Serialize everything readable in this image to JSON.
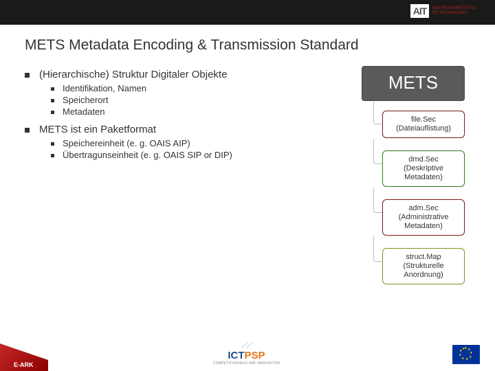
{
  "header": {
    "ait_mark": "AIT",
    "ait_line1": "AUSTRIAN INSTITUTE",
    "ait_line2": "OF TECHNOLOGY"
  },
  "title": "METS Metadata Encoding & Transmission Standard",
  "bullets": {
    "p1": "(Hierarchische) Struktur Digitaler Objekte",
    "p1_sub": [
      "Identifikation, Namen",
      "Speicherort",
      "Metadaten"
    ],
    "p2": "METS ist ein Paketformat",
    "p2_sub": [
      "Speichereinheit (e. g. OAIS AIP)",
      "Übertragunseinheit (e. g. OAIS SIP or DIP)"
    ]
  },
  "diagram": {
    "root": "METS",
    "root_bg": "#5a5a5a",
    "root_color": "#ffffff",
    "sections": [
      {
        "line1": "file.Sec",
        "line2": "(Dateiauflistung)",
        "border": "#7a1616"
      },
      {
        "line1": "dmd.Sec",
        "line2": "(Deskriptive Metadaten)",
        "border": "#2e7a1e"
      },
      {
        "line1": "adm.Sec",
        "line2": "(Administrative Metadaten)",
        "border": "#7a1616"
      },
      {
        "line1": "struct.Map",
        "line2": "(Strukturelle Anordnung)",
        "border": "#8a8a1e"
      }
    ]
  },
  "footer": {
    "eark": "E-ARK",
    "ict": "ICT",
    "psp": "PSP",
    "ict_sub": "COMPETITIVENESS AND INNOVATION"
  }
}
